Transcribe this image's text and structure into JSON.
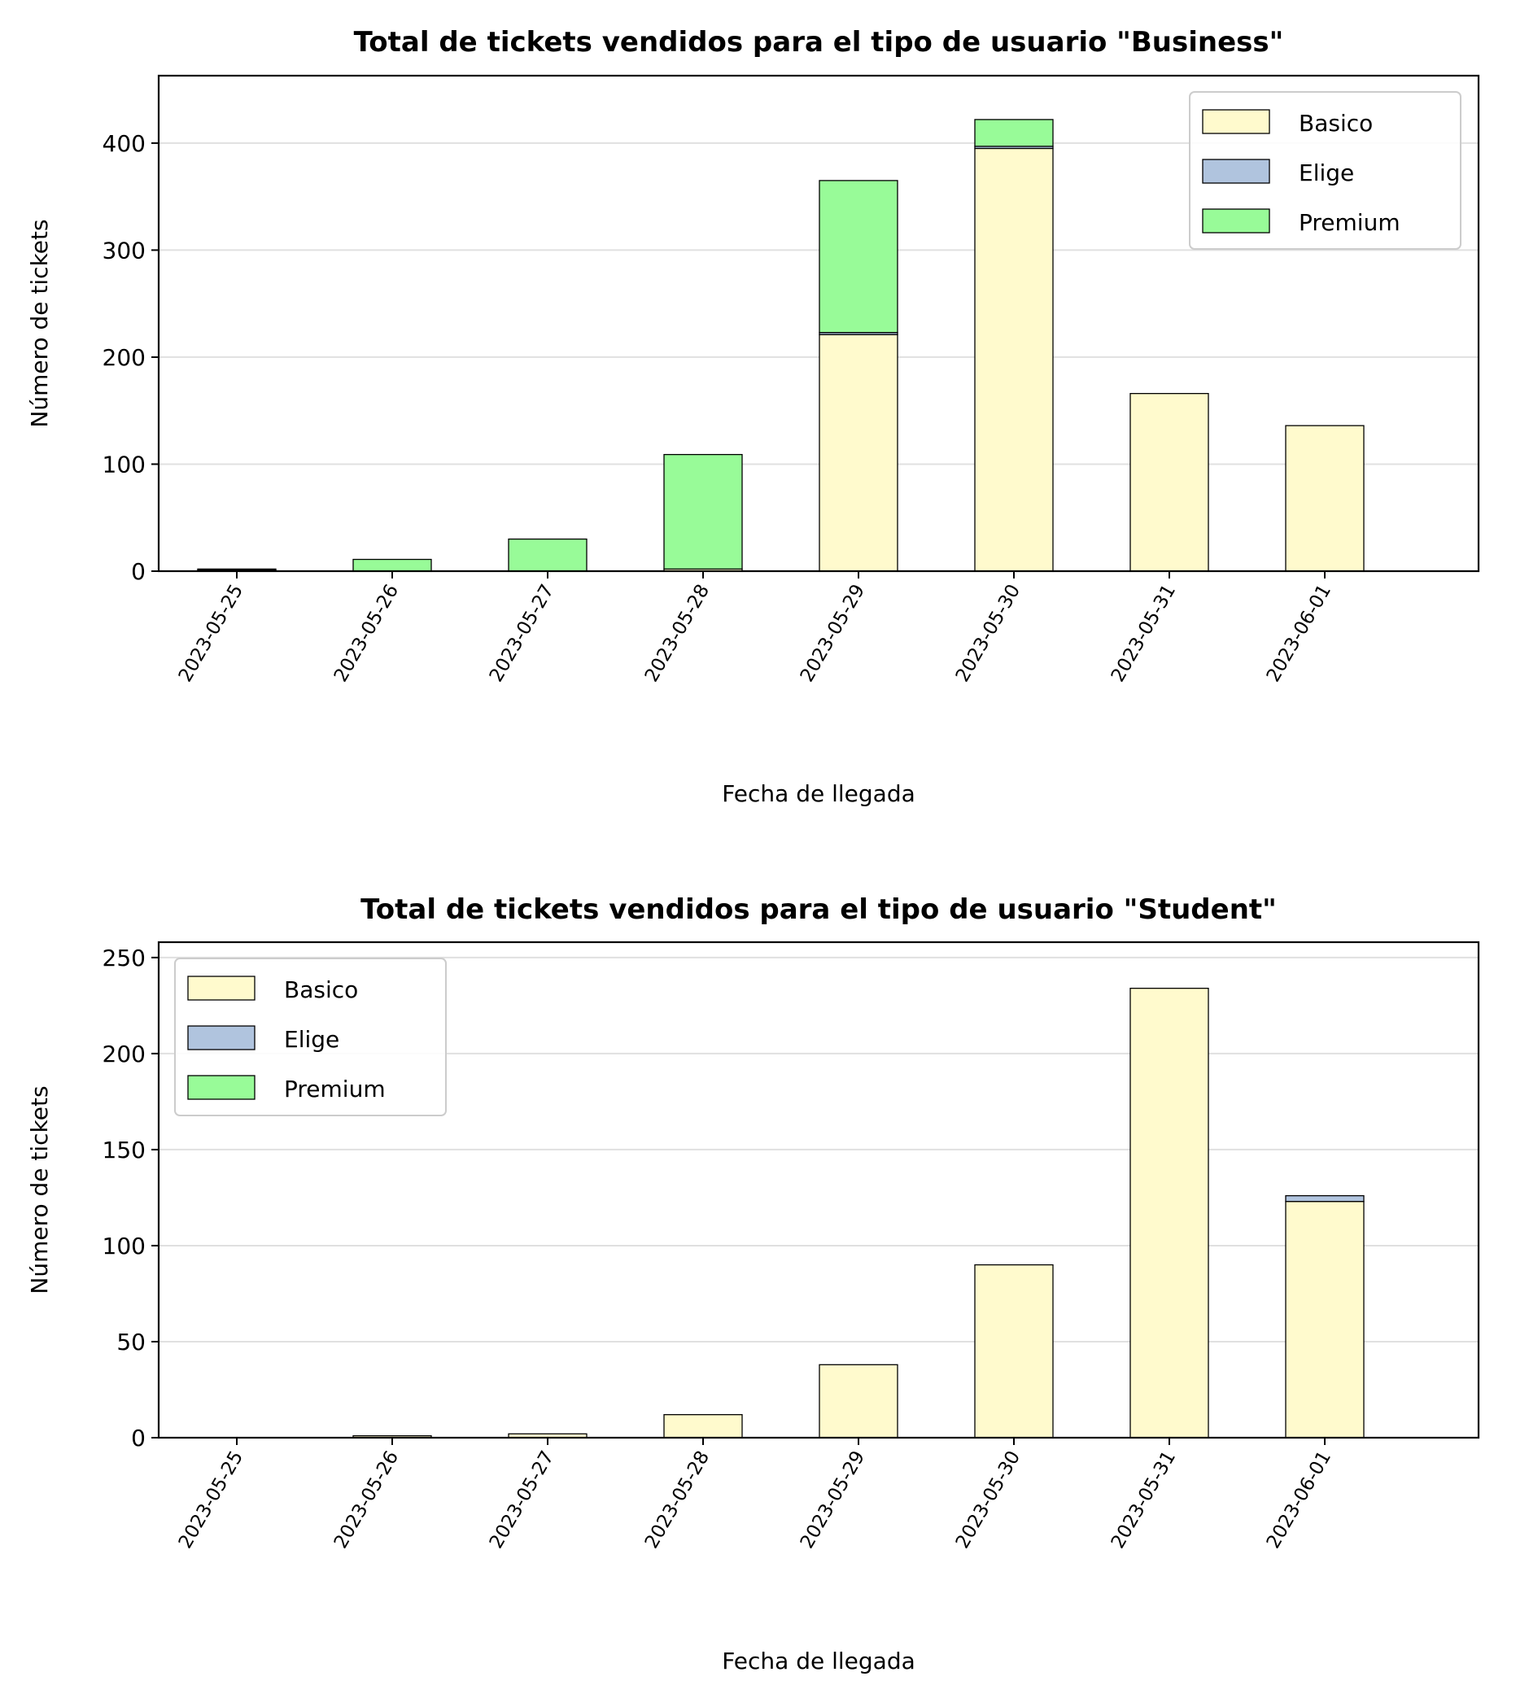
{
  "chart_data": [
    {
      "type": "bar",
      "stacked": true,
      "title": "Total de tickets vendidos para el tipo de usuario \"Business\"",
      "xlabel": "Fecha de llegada",
      "ylabel": "Número de tickets",
      "ylim": [
        0,
        463
      ],
      "yticks": [
        0,
        100,
        200,
        300,
        400
      ],
      "grid": "y",
      "legend_position": "top-right",
      "categories": [
        "2023-05-25",
        "2023-05-26",
        "2023-05-27",
        "2023-05-28",
        "2023-05-29",
        "2023-05-30",
        "2023-05-31",
        "2023-06-01"
      ],
      "series": [
        {
          "name": "Basico",
          "color": "#fffacd",
          "values": [
            1,
            0,
            0,
            2,
            221,
            395,
            166,
            136
          ]
        },
        {
          "name": "Elige",
          "color": "#b0c4de",
          "values": [
            1,
            0,
            0,
            0,
            2,
            2,
            0,
            0
          ]
        },
        {
          "name": "Premium",
          "color": "#98fb98",
          "values": [
            0,
            11,
            30,
            107,
            142,
            25,
            0,
            0
          ]
        }
      ]
    },
    {
      "type": "bar",
      "stacked": true,
      "title": "Total de tickets vendidos para el tipo de usuario \"Student\"",
      "xlabel": "Fecha de llegada",
      "ylabel": "Número de tickets",
      "ylim": [
        0,
        258
      ],
      "yticks": [
        0,
        50,
        100,
        150,
        200,
        250
      ],
      "grid": "y",
      "legend_position": "top-left",
      "categories": [
        "2023-05-25",
        "2023-05-26",
        "2023-05-27",
        "2023-05-28",
        "2023-05-29",
        "2023-05-30",
        "2023-05-31",
        "2023-06-01"
      ],
      "series": [
        {
          "name": "Basico",
          "color": "#fffacd",
          "values": [
            0,
            1,
            2,
            12,
            38,
            90,
            234,
            123
          ]
        },
        {
          "name": "Elige",
          "color": "#b0c4de",
          "values": [
            0,
            0,
            0,
            0,
            0,
            0,
            0,
            3
          ]
        },
        {
          "name": "Premium",
          "color": "#98fb98",
          "values": [
            0,
            0,
            0,
            0,
            0,
            0,
            0,
            0
          ]
        }
      ]
    }
  ]
}
